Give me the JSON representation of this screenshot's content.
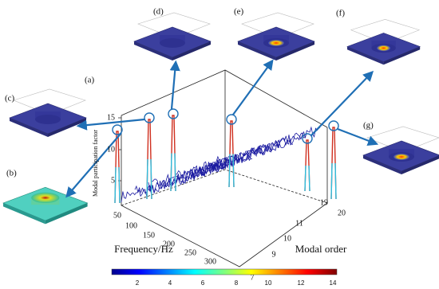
{
  "panels": [
    "(a)",
    "(b)",
    "(c)",
    "(d)",
    "(e)",
    "(f)",
    "(g)"
  ],
  "axes": {
    "z_label": "Modal participation factor",
    "z_ticks": [
      "5",
      "10",
      "15"
    ],
    "x_label": "Frequency/Hz",
    "x_ticks": [
      "50",
      "100",
      "150",
      "200",
      "250",
      "300"
    ],
    "y_label": "Modal order",
    "y_ticks": [
      "7",
      "9",
      "10",
      "11",
      "19",
      "20"
    ]
  },
  "colorbar": {
    "ticks": [
      "2",
      "4",
      "6",
      "8",
      "10",
      "12",
      "14"
    ]
  }
}
